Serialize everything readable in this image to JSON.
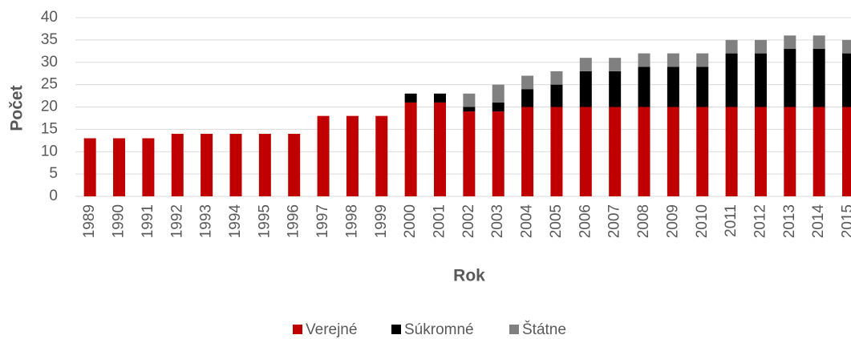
{
  "chart_data": {
    "type": "stacked-bar",
    "x_label": "Rok",
    "y_label": "Počet",
    "categories": [
      "1989",
      "1990",
      "1991",
      "1992",
      "1993",
      "1994",
      "1995",
      "1996",
      "1997",
      "1998",
      "1999",
      "2000",
      "2001",
      "2002",
      "2003",
      "2004",
      "2005",
      "2006",
      "2007",
      "2008",
      "2009",
      "2010",
      "2011",
      "2012",
      "2013",
      "2014",
      "2015"
    ],
    "series": [
      {
        "name": "Verejné",
        "color": "#c00000",
        "values": [
          13,
          13,
          13,
          14,
          14,
          14,
          14,
          14,
          18,
          18,
          18,
          21,
          21,
          19,
          19,
          20,
          20,
          20,
          20,
          20,
          20,
          20,
          20,
          20,
          20,
          20,
          20
        ]
      },
      {
        "name": "Súkromné",
        "color": "#000000",
        "values": [
          0,
          0,
          0,
          0,
          0,
          0,
          0,
          0,
          0,
          0,
          0,
          2,
          2,
          1,
          2,
          4,
          5,
          8,
          8,
          9,
          9,
          9,
          12,
          12,
          13,
          13,
          12
        ]
      },
      {
        "name": "Štátne",
        "color": "#808080",
        "values": [
          0,
          0,
          0,
          0,
          0,
          0,
          0,
          0,
          0,
          0,
          0,
          0,
          0,
          3,
          4,
          3,
          3,
          3,
          3,
          3,
          3,
          3,
          3,
          3,
          3,
          3,
          3
        ]
      }
    ],
    "ylim": [
      0,
      40
    ],
    "yticks": [
      0,
      5,
      10,
      15,
      20,
      25,
      30,
      35,
      40
    ],
    "grid": true,
    "legend": "bottom"
  }
}
